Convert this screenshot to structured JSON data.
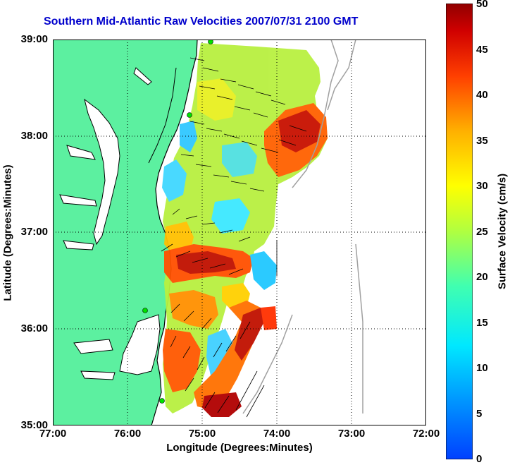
{
  "title": "Southern Mid-Atlantic Raw Velocities 2007/07/31 2100 GMT",
  "chart_data": {
    "type": "map",
    "title": "Southern Mid-Atlantic Raw Velocities 2007/07/31 2100 GMT",
    "xlabel": "Longitude (Degrees:Minutes)",
    "ylabel": "Latitude (Degrees:Minutes)",
    "xlim": [
      -77,
      -72
    ],
    "ylim": [
      35,
      39
    ],
    "x_tick_labels": [
      "77:00",
      "76:00",
      "75:00",
      "74:00",
      "73:00",
      "72:00"
    ],
    "y_tick_labels": [
      "39:00",
      "38:00",
      "37:00",
      "36:00",
      "35:00"
    ],
    "grid": "dotted",
    "colorbar": {
      "label": "Surface Velocity (cm/s)",
      "range": [
        0,
        50
      ],
      "tick_labels": [
        "50",
        "45",
        "40",
        "35",
        "30",
        "25",
        "20",
        "15",
        "10",
        "5",
        "0"
      ],
      "colormap": "jet"
    },
    "land_color": "#5cf0a0",
    "title_color": "#0000cc"
  }
}
